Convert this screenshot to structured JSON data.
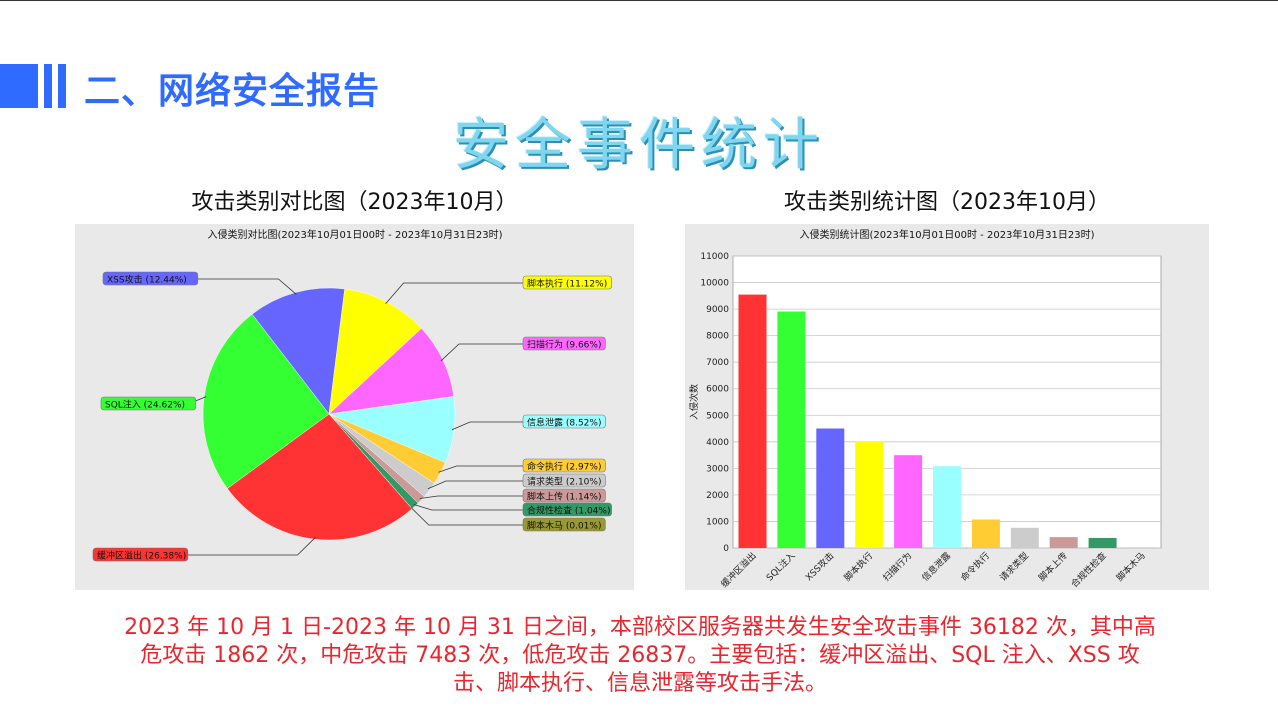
{
  "header": {
    "section_title": "二、网络安全报告",
    "main_title": "安全事件统计"
  },
  "colors": {
    "accent": "#2f6bff",
    "title": "#7fd6ee",
    "summary_text": "#e8262e",
    "panel_bg": "#e9e9e9"
  },
  "charts": {
    "pie_heading": "攻击类别对比图（2023年10月）",
    "bar_heading": "攻击类别统计图（2023年10月）"
  },
  "chart_data": [
    {
      "type": "pie",
      "title": "入侵类别对比图(2023年10月01日00时 - 2023年10月31日23时)",
      "slices": [
        {
          "label": "缓冲区溢出",
          "percent": 26.38,
          "display": "缓冲区溢出 (26.38%)",
          "color": "#ff3333"
        },
        {
          "label": "SQL注入",
          "percent": 24.62,
          "display": "SQL注入 (24.62%)",
          "color": "#33ff33"
        },
        {
          "label": "XSS攻击",
          "percent": 12.44,
          "display": "XSS攻击 (12.44%)",
          "color": "#6666ff"
        },
        {
          "label": "脚本执行",
          "percent": 11.12,
          "display": "脚本执行 (11.12%)",
          "color": "#ffff00"
        },
        {
          "label": "扫描行为",
          "percent": 9.66,
          "display": "扫描行为 (9.66%)",
          "color": "#ff66ff"
        },
        {
          "label": "信息泄露",
          "percent": 8.52,
          "display": "信息泄露 (8.52%)",
          "color": "#99ffff"
        },
        {
          "label": "命令执行",
          "percent": 2.97,
          "display": "命令执行 (2.97%)",
          "color": "#ffcc33"
        },
        {
          "label": "请求类型",
          "percent": 2.1,
          "display": "请求类型 (2.10%)",
          "color": "#cccccc"
        },
        {
          "label": "脚本上传",
          "percent": 1.14,
          "display": "脚本上传 (1.14%)",
          "color": "#cc9999"
        },
        {
          "label": "合规性检查",
          "percent": 1.04,
          "display": "合规性检查 (1.04%)",
          "color": "#339966"
        },
        {
          "label": "脚本木马",
          "percent": 0.01,
          "display": "脚本木马 (0.01%)",
          "color": "#999933"
        }
      ]
    },
    {
      "type": "bar",
      "title": "入侵类别统计图(2023年10月01日00时 - 2023年10月31日23时)",
      "ylabel": "入侵次数",
      "ylim": [
        0,
        11000
      ],
      "yticks": [
        "0",
        "1000",
        "2000",
        "3000",
        "4000",
        "5000",
        "6000",
        "7000",
        "8000",
        "9000",
        "10000",
        "11000"
      ],
      "grid": true,
      "categories": [
        "缓冲区溢出",
        "SQL注入",
        "XSS攻击",
        "脚本执行",
        "扫描行为",
        "信息泄露",
        "命令执行",
        "请求类型",
        "脚本上传",
        "合规性检查",
        "脚本木马"
      ],
      "values": [
        9545,
        8908,
        4501,
        4024,
        3495,
        3083,
        1075,
        760,
        412,
        376,
        4
      ],
      "colors": [
        "#ff3333",
        "#33ff33",
        "#6666ff",
        "#ffff00",
        "#ff66ff",
        "#99ffff",
        "#ffcc33",
        "#cccccc",
        "#cc9999",
        "#339966",
        "#999933"
      ]
    }
  ],
  "summary": "2023 年 10 月 1 日-2023 年 10 月 31 日之间，本部校区服务器共发生安全攻击事件 36182 次，其中高危攻击 1862 次，中危攻击 7483 次，低危攻击 26837。主要包括：缓冲区溢出、SQL 注入、XSS 攻击、脚本执行、信息泄露等攻击手法。"
}
